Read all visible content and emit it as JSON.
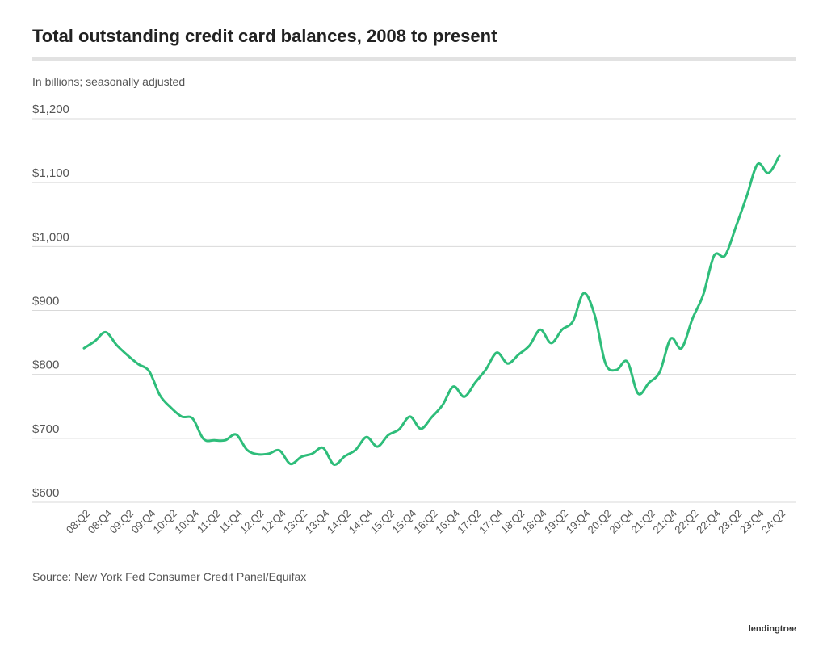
{
  "chart_data": {
    "type": "line",
    "title": "Total outstanding credit card balances, 2008 to present",
    "subtitle": "In billions; seasonally adjusted",
    "source": "Source: New York Fed Consumer Credit Panel/Equifax",
    "brand": "lendingtree",
    "categories": [
      "08:Q2",
      null,
      "08:Q4",
      null,
      "09:Q2",
      null,
      "09:Q4",
      null,
      "10:Q2",
      null,
      "10:Q4",
      null,
      "11:Q2",
      null,
      "11:Q4",
      null,
      "12:Q2",
      null,
      "12:Q4",
      null,
      "13:Q2",
      null,
      "13:Q4",
      null,
      "14:Q2",
      null,
      "14:Q4",
      null,
      "15:Q2",
      null,
      "15:Q4",
      null,
      "16:Q2",
      null,
      "16:Q4",
      null,
      "17:Q2",
      null,
      "17:Q4",
      null,
      "18:Q2",
      null,
      "18:Q4",
      null,
      "19:Q2",
      null,
      "19:Q4",
      null,
      "20:Q2",
      null,
      "20:Q4",
      null,
      "21:Q2",
      null,
      "21:Q4",
      null,
      "22:Q2",
      null,
      "22:Q4",
      null,
      "23:Q2",
      null,
      "23:Q4",
      null,
      "24:Q2"
    ],
    "values": [
      841,
      852,
      866,
      846,
      830,
      816,
      805,
      767,
      748,
      734,
      731,
      699,
      697,
      697,
      706,
      682,
      675,
      676,
      681,
      660,
      671,
      676,
      685,
      659,
      672,
      682,
      702,
      687,
      705,
      714,
      734,
      715,
      733,
      752,
      781,
      765,
      787,
      808,
      834,
      817,
      831,
      845,
      870,
      849,
      870,
      883,
      927,
      893,
      817,
      807,
      820,
      770,
      787,
      804,
      856,
      841,
      887,
      925,
      986,
      986,
      1031,
      1079,
      1129,
      1115,
      1142
    ],
    "color": "#2ebd7a",
    "ylim": [
      600,
      1200
    ],
    "yticks": [
      {
        "value": 600,
        "label": "$600"
      },
      {
        "value": 700,
        "label": "$700"
      },
      {
        "value": 800,
        "label": "$800"
      },
      {
        "value": 900,
        "label": "$900"
      },
      {
        "value": 1000,
        "label": "$1,000"
      },
      {
        "value": 1100,
        "label": "$1,100"
      },
      {
        "value": 1200,
        "label": "$1,200"
      }
    ],
    "grid": true
  }
}
